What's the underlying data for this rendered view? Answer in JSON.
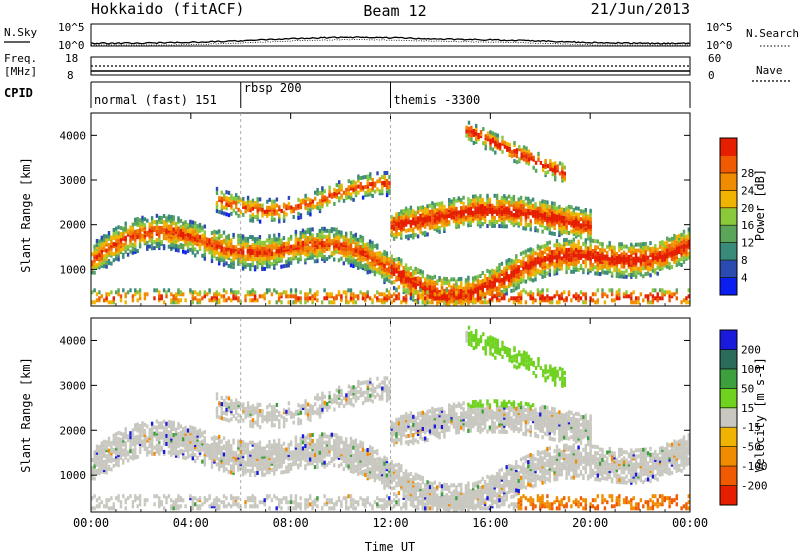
{
  "header": {
    "station": "Hokkaido (fitACF)",
    "beam": "Beam 12",
    "date": "21/Jun/2013"
  },
  "strips": {
    "nsky_label": "N.Sky",
    "nsearch_label": "N.Search",
    "freq_label_1": "Freq.",
    "freq_label_2": "[MHz]",
    "nave_label": "Nave",
    "cpid_label": "CPID",
    "nsky_ticks": [
      "10^5",
      "10^0"
    ],
    "freq_ticks": [
      "18",
      "8"
    ],
    "nave_ticks": [
      "60",
      "0"
    ]
  },
  "cpid_segments": [
    {
      "label": "normal (fast) 151",
      "start_hour": 0
    },
    {
      "label": "rbsp 200",
      "start_hour": 6
    },
    {
      "label": "themis -3300",
      "start_hour": 12
    }
  ],
  "colors": {
    "power_scale": [
      "#0a1ef0",
      "#2b4bb0",
      "#3a8a7a",
      "#5aa55a",
      "#8ac83c",
      "#f0b400",
      "#f08c00",
      "#f05a00",
      "#e61e00"
    ],
    "velocity_scale": [
      "#1a1adc",
      "#2b6b5a",
      "#3ca03c",
      "#6ed21e",
      "#c8c8c0",
      "#f0b400",
      "#f08c00",
      "#f05a00",
      "#e61e00"
    ]
  },
  "chart_data": [
    {
      "type": "heatmap",
      "panel": "power",
      "xlabel": "",
      "ylabel": "Slant Range [km]",
      "x_range_hours": [
        0,
        24
      ],
      "ylim": [
        180,
        4500
      ],
      "x_ticks": [
        "00:00",
        "04:00",
        "08:00",
        "12:00",
        "16:00",
        "20:00",
        "00:00"
      ],
      "y_ticks": [
        "1000",
        "2000",
        "3000",
        "4000"
      ],
      "colorbar_label": "Power [dB]",
      "colorbar_ticks": [
        "4",
        "8",
        "12",
        "16",
        "20",
        "24",
        "28"
      ],
      "colorbar_range": [
        0,
        30
      ]
    },
    {
      "type": "heatmap",
      "panel": "velocity",
      "xlabel": "Time UT",
      "ylabel": "Slant Range [km]",
      "x_range_hours": [
        0,
        24
      ],
      "ylim": [
        180,
        4500
      ],
      "x_ticks": [
        "00:00",
        "04:00",
        "08:00",
        "12:00",
        "16:00",
        "20:00",
        "00:00"
      ],
      "y_ticks": [
        "1000",
        "2000",
        "3000",
        "4000"
      ],
      "colorbar_label": "Velocity [m s-1]",
      "colorbar_ticks": [
        "200",
        "100",
        "50",
        "15",
        "-15",
        "-50",
        "-100",
        "-200"
      ],
      "colorbar_range": [
        -250,
        250
      ]
    }
  ]
}
